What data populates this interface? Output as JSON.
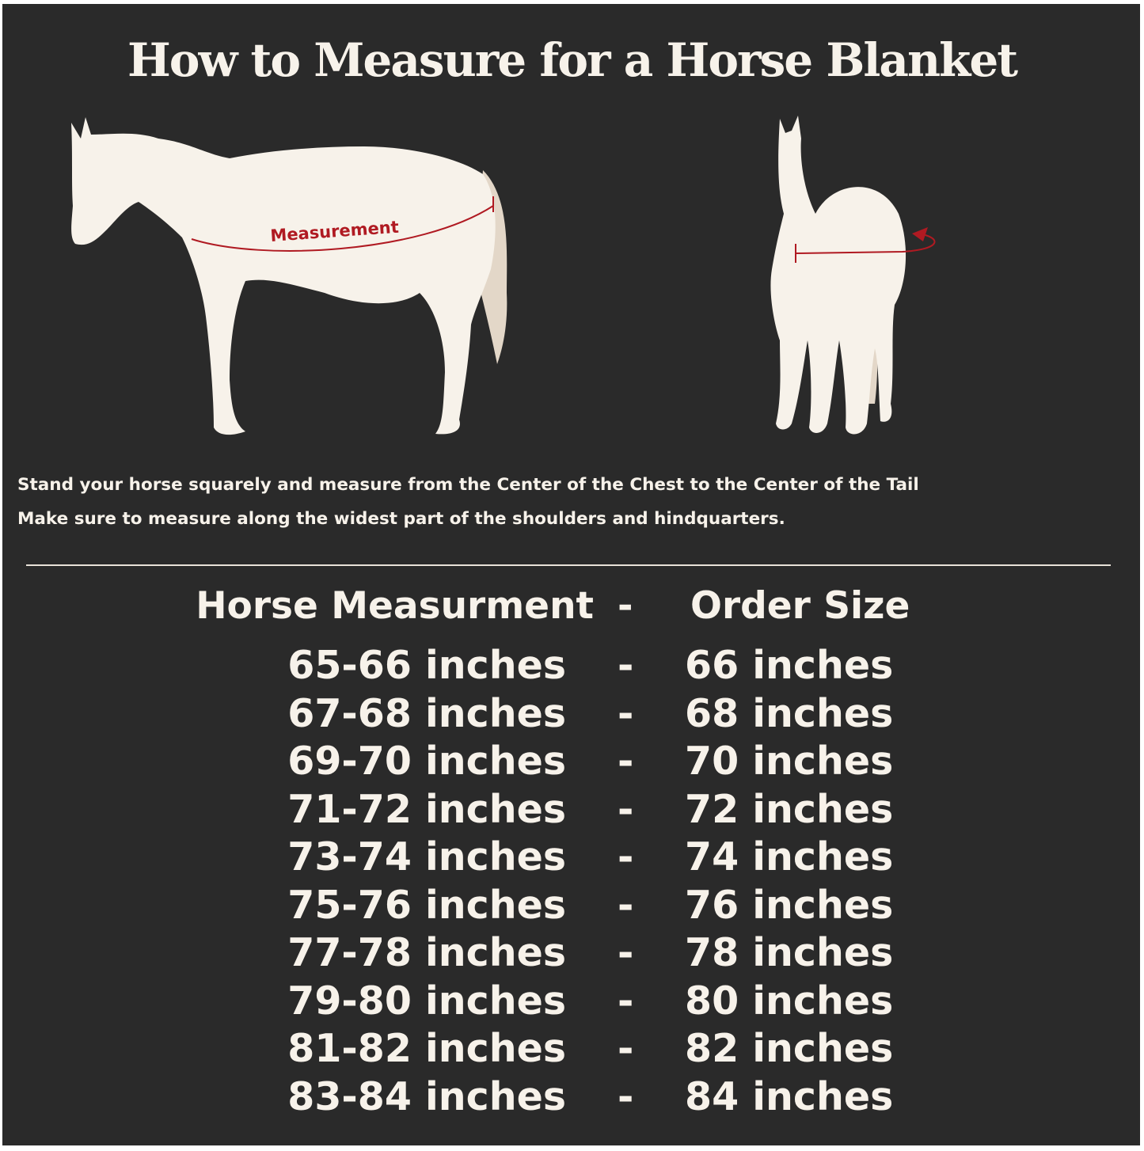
{
  "title": "How to Measure for a Horse Blanket",
  "illustration": {
    "side_label": "Measurement",
    "measure_color": "#b01a22",
    "horse_color": "#f7f2ea",
    "tail_color": "#e3d7c8"
  },
  "instructions": [
    "Stand your horse squarely and measure from the Center of the Chest to the Center of the Tail",
    "Make sure to measure along the widest part of the shoulders and hindquarters."
  ],
  "table": {
    "header": {
      "left": "Horse Measurment",
      "sep": "-",
      "right": "Order Size"
    },
    "rows": [
      {
        "measurement": "65-66 inches",
        "sep": "-",
        "size": "66 inches"
      },
      {
        "measurement": "67-68 inches",
        "sep": "-",
        "size": "68 inches"
      },
      {
        "measurement": "69-70 inches",
        "sep": "-",
        "size": "70 inches"
      },
      {
        "measurement": "71-72 inches",
        "sep": "-",
        "size": "72 inches"
      },
      {
        "measurement": "73-74 inches",
        "sep": "-",
        "size": "74 inches"
      },
      {
        "measurement": "75-76 inches",
        "sep": "-",
        "size": "76 inches"
      },
      {
        "measurement": "77-78 inches",
        "sep": "-",
        "size": "78 inches"
      },
      {
        "measurement": "79-80 inches",
        "sep": "-",
        "size": "80 inches"
      },
      {
        "measurement": "81-82 inches",
        "sep": "-",
        "size": "82 inches"
      },
      {
        "measurement": "83-84 inches",
        "sep": "-",
        "size": "84 inches"
      }
    ]
  },
  "colors": {
    "background": "#2a2a2a",
    "text": "#f7f2ea"
  }
}
